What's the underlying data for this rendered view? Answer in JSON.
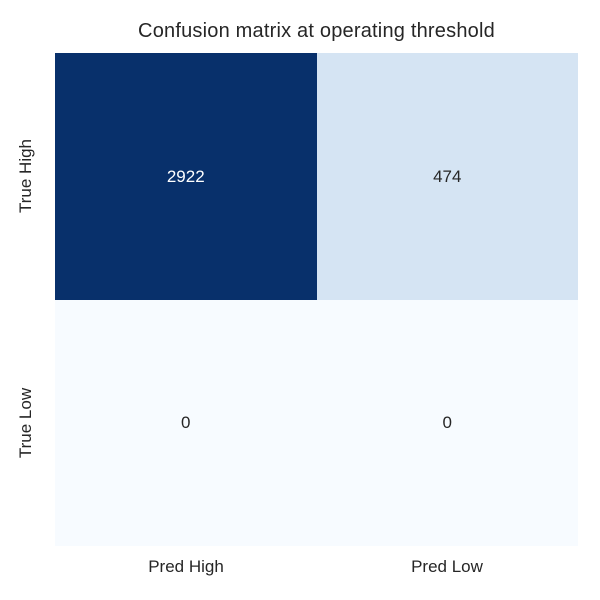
{
  "title": "Confusion matrix at operating threshold",
  "chart_data": {
    "type": "heatmap",
    "title": "Confusion matrix at operating threshold",
    "rows": [
      "True High",
      "True Low"
    ],
    "columns": [
      "Pred High",
      "Pred Low"
    ],
    "values": [
      [
        2922,
        474
      ],
      [
        0,
        0
      ]
    ],
    "value_range": [
      0,
      2922
    ],
    "colormap": "Blues",
    "annotations": true,
    "legend": "none",
    "grid": false,
    "cell_colors": [
      [
        "#08306b",
        "#d5e4f3"
      ],
      [
        "#f7fbff",
        "#f7fbff"
      ]
    ],
    "cell_text_colors": [
      [
        "#ffffff",
        "#262626"
      ],
      [
        "#262626",
        "#262626"
      ]
    ]
  },
  "colors": {
    "background": "#ffffff",
    "title_text": "#262626",
    "tick_text": "#262626"
  }
}
